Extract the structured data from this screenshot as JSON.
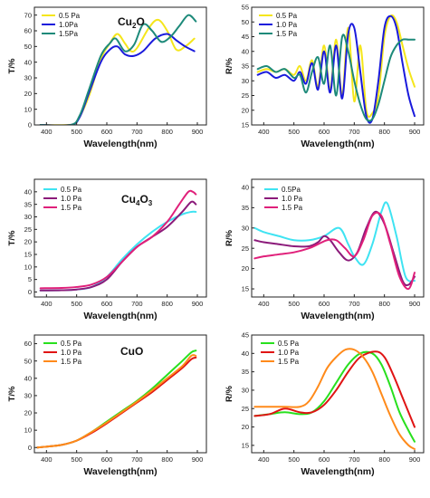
{
  "chart_data": [
    {
      "type": "line",
      "panel": "Cu2O-T",
      "title_main": "Cu",
      "title_sub": "2",
      "title_tail": "O",
      "xlabel": "Wavelength(nm)",
      "ylabel": "T/%",
      "xlim": [
        360,
        930
      ],
      "ylim": [
        0,
        75
      ],
      "xticks": [
        400,
        500,
        600,
        700,
        800,
        900
      ],
      "yticks": [
        0,
        10,
        20,
        30,
        40,
        50,
        60,
        70
      ],
      "legend": "top-left",
      "series": [
        {
          "name": "0.5 Pa",
          "color": "#f5e61b",
          "x": [
            380,
            470,
            500,
            540,
            580,
            610,
            635,
            660,
            680,
            700,
            740,
            770,
            800,
            830,
            860,
            890
          ],
          "y": [
            0,
            0,
            2,
            18,
            42,
            52,
            58,
            52,
            47,
            49,
            62,
            67,
            60,
            48,
            50,
            55
          ]
        },
        {
          "name": "1.0Pa",
          "color": "#1a1adc",
          "x": [
            380,
            480,
            510,
            540,
            580,
            610,
            635,
            660,
            690,
            720,
            760,
            800,
            830,
            860,
            890
          ],
          "y": [
            0,
            0,
            5,
            20,
            40,
            48,
            50,
            45,
            44,
            47,
            55,
            58,
            54,
            50,
            47
          ]
        },
        {
          "name": "1.5Pa",
          "color": "#1d8a7a",
          "x": [
            380,
            480,
            510,
            540,
            580,
            610,
            630,
            660,
            690,
            720,
            750,
            780,
            810,
            840,
            870,
            895
          ],
          "y": [
            0,
            0,
            6,
            22,
            44,
            52,
            55,
            47,
            51,
            64,
            60,
            53,
            56,
            63,
            70,
            66
          ]
        }
      ]
    },
    {
      "type": "line",
      "panel": "Cu2O-R",
      "xlabel": "Wavelength(nm)",
      "ylabel": "R/%",
      "xlim": [
        360,
        930
      ],
      "ylim": [
        15,
        55
      ],
      "xticks": [
        400,
        500,
        600,
        700,
        800,
        900
      ],
      "yticks": [
        15,
        20,
        25,
        30,
        35,
        40,
        45,
        50,
        55
      ],
      "legend": "top-left",
      "series": [
        {
          "name": "0.5 Pa",
          "color": "#f5e61b",
          "x": [
            380,
            410,
            440,
            470,
            500,
            520,
            540,
            560,
            580,
            600,
            620,
            640,
            660,
            680,
            700,
            720,
            740,
            760,
            780,
            800,
            820,
            840,
            860,
            880,
            900
          ],
          "y": [
            33,
            34,
            33,
            34,
            32,
            35,
            30,
            37,
            28,
            42,
            27,
            44,
            25,
            48,
            23,
            42,
            20,
            19,
            25,
            45,
            52,
            50,
            42,
            34,
            28
          ]
        },
        {
          "name": "1.0 Pa",
          "color": "#1a1adc",
          "x": [
            380,
            410,
            440,
            470,
            500,
            520,
            540,
            560,
            580,
            600,
            620,
            640,
            660,
            680,
            700,
            720,
            740,
            760,
            780,
            800,
            820,
            840,
            860,
            880,
            900
          ],
          "y": [
            32,
            33,
            31,
            32,
            30,
            33,
            29,
            36,
            27,
            40,
            26,
            42,
            24,
            46,
            48,
            33,
            18,
            17,
            30,
            48,
            52,
            48,
            36,
            25,
            18
          ]
        },
        {
          "name": "1.5 Pa",
          "color": "#1d8a7a",
          "x": [
            380,
            410,
            440,
            470,
            500,
            520,
            540,
            560,
            580,
            600,
            620,
            640,
            660,
            680,
            700,
            720,
            740,
            760,
            780,
            800,
            820,
            840,
            860,
            880,
            900
          ],
          "y": [
            34,
            35,
            33,
            34,
            31,
            32,
            26,
            33,
            38,
            29,
            42,
            25,
            45,
            40,
            30,
            22,
            17,
            17,
            22,
            30,
            38,
            42,
            44,
            44,
            44
          ]
        }
      ]
    },
    {
      "type": "line",
      "panel": "Cu4O3-T",
      "title_main": "Cu",
      "title_sub": "4",
      "title_mid": "O",
      "title_sub2": "3",
      "xlabel": "Wavelength(nm)",
      "ylabel": "T/%",
      "xlim": [
        360,
        930
      ],
      "ylim": [
        -2,
        45
      ],
      "xticks": [
        400,
        500,
        600,
        700,
        800,
        900
      ],
      "yticks": [
        0,
        5,
        10,
        15,
        20,
        25,
        30,
        35,
        40
      ],
      "legend": "top-left",
      "series": [
        {
          "name": "0.5 Pa",
          "color": "#3fe3f2",
          "x": [
            380,
            450,
            500,
            550,
            600,
            650,
            700,
            750,
            800,
            850,
            880,
            895
          ],
          "y": [
            0.6,
            0.7,
            1,
            2,
            6,
            13,
            19,
            24,
            28,
            31,
            32,
            32
          ]
        },
        {
          "name": "1.0 Pa",
          "color": "#8b1a7a",
          "x": [
            380,
            450,
            500,
            550,
            600,
            650,
            700,
            750,
            800,
            850,
            880,
            895
          ],
          "y": [
            0.6,
            0.7,
            1,
            2,
            5,
            12,
            18,
            22,
            26,
            32,
            36,
            35
          ]
        },
        {
          "name": "1.5 Pa",
          "color": "#e0207a",
          "x": [
            380,
            450,
            500,
            550,
            600,
            650,
            700,
            750,
            800,
            840,
            870,
            885,
            895
          ],
          "y": [
            1.5,
            1.6,
            2,
            3,
            6,
            12,
            18,
            22,
            28,
            35,
            40,
            40,
            39
          ]
        }
      ]
    },
    {
      "type": "line",
      "panel": "Cu4O3-R",
      "xlabel": "Wavelength(nm)",
      "ylabel": "R/%",
      "xlim": [
        360,
        930
      ],
      "ylim": [
        13,
        42
      ],
      "xticks": [
        400,
        500,
        600,
        700,
        800,
        900
      ],
      "yticks": [
        15,
        20,
        25,
        30,
        35,
        40
      ],
      "legend": "top-left",
      "series": [
        {
          "name": "0.5Pa",
          "color": "#3fe3f2",
          "x": [
            370,
            400,
            450,
            500,
            550,
            600,
            650,
            680,
            700,
            730,
            760,
            790,
            810,
            840,
            870,
            900
          ],
          "y": [
            30,
            29,
            28,
            27,
            27,
            28,
            30,
            26,
            23,
            21,
            26,
            34,
            36,
            28,
            18,
            17
          ]
        },
        {
          "name": "1.0 Pa",
          "color": "#8b1a7a",
          "x": [
            370,
            400,
            450,
            500,
            550,
            580,
            600,
            620,
            650,
            680,
            710,
            740,
            770,
            800,
            830,
            860,
            880,
            900
          ],
          "y": [
            27,
            26.5,
            26,
            25.5,
            25.5,
            26.5,
            28,
            27,
            24,
            22,
            24,
            30,
            34,
            31,
            24,
            17,
            16,
            18
          ]
        },
        {
          "name": "1.5 Pa",
          "color": "#e0207a",
          "x": [
            370,
            400,
            450,
            500,
            550,
            580,
            610,
            640,
            670,
            700,
            730,
            760,
            790,
            820,
            850,
            880,
            900
          ],
          "y": [
            22.5,
            23,
            23.5,
            24,
            25,
            26,
            27,
            27,
            25,
            23,
            27,
            33,
            33,
            26,
            18,
            15,
            19
          ]
        }
      ]
    },
    {
      "type": "line",
      "panel": "CuO-T",
      "title_main": "CuO",
      "xlabel": "Wavelength(nm)",
      "ylabel": "T/%",
      "xlim": [
        360,
        930
      ],
      "ylim": [
        -3,
        65
      ],
      "xticks": [
        400,
        500,
        600,
        700,
        800,
        900
      ],
      "yticks": [
        0,
        10,
        20,
        30,
        40,
        50,
        60
      ],
      "legend": "top-left",
      "series": [
        {
          "name": "0.5 Pa",
          "color": "#28e01e",
          "x": [
            370,
            400,
            450,
            500,
            550,
            600,
            650,
            700,
            750,
            800,
            850,
            880,
            895
          ],
          "y": [
            0,
            0.5,
            1.5,
            4,
            9,
            15,
            21,
            27,
            34,
            42,
            50,
            55,
            56
          ]
        },
        {
          "name": "1.0 Pa",
          "color": "#e01414",
          "x": [
            370,
            400,
            450,
            500,
            550,
            600,
            650,
            700,
            750,
            800,
            850,
            880,
            895
          ],
          "y": [
            0,
            0.5,
            1.5,
            4,
            8.5,
            14,
            20,
            26,
            32,
            39,
            46,
            51,
            52
          ]
        },
        {
          "name": "1.5 Pa",
          "color": "#ff8a1a",
          "x": [
            370,
            400,
            450,
            500,
            550,
            600,
            650,
            700,
            750,
            800,
            850,
            880,
            895
          ],
          "y": [
            0,
            0.5,
            1.5,
            4,
            9,
            14.5,
            20.5,
            26.5,
            33,
            40,
            47,
            53,
            53
          ]
        }
      ]
    },
    {
      "type": "line",
      "panel": "CuO-R",
      "xlabel": "Wavelength(nm)",
      "ylabel": "R/%",
      "xlim": [
        360,
        930
      ],
      "ylim": [
        13,
        45
      ],
      "xticks": [
        400,
        500,
        600,
        700,
        800,
        900
      ],
      "yticks": [
        15,
        20,
        25,
        30,
        35,
        40,
        45
      ],
      "legend": "top-left",
      "series": [
        {
          "name": "0.5 Pa",
          "color": "#28e01e",
          "x": [
            370,
            420,
            470,
            520,
            560,
            600,
            640,
            680,
            720,
            760,
            790,
            820,
            850,
            880,
            900
          ],
          "y": [
            23,
            23.5,
            24,
            23.5,
            24,
            27,
            32,
            37,
            40,
            40,
            37,
            31,
            24,
            19,
            16
          ]
        },
        {
          "name": "1.0 Pa",
          "color": "#e01414",
          "x": [
            370,
            420,
            470,
            520,
            560,
            600,
            640,
            680,
            720,
            770,
            800,
            830,
            860,
            885,
            900
          ],
          "y": [
            23,
            23.5,
            25,
            24,
            24,
            26,
            30,
            35,
            39,
            40.5,
            39,
            34,
            28,
            23,
            20
          ]
        },
        {
          "name": "1.5 Pa",
          "color": "#ff8a1a",
          "x": [
            370,
            420,
            470,
            520,
            550,
            580,
            610,
            640,
            670,
            700,
            730,
            760,
            790,
            820,
            850,
            880,
            900
          ],
          "y": [
            25.5,
            25.5,
            25.5,
            25.5,
            27,
            31,
            36,
            39,
            41,
            41,
            39,
            35,
            29,
            23,
            18,
            15,
            14
          ]
        }
      ]
    }
  ]
}
